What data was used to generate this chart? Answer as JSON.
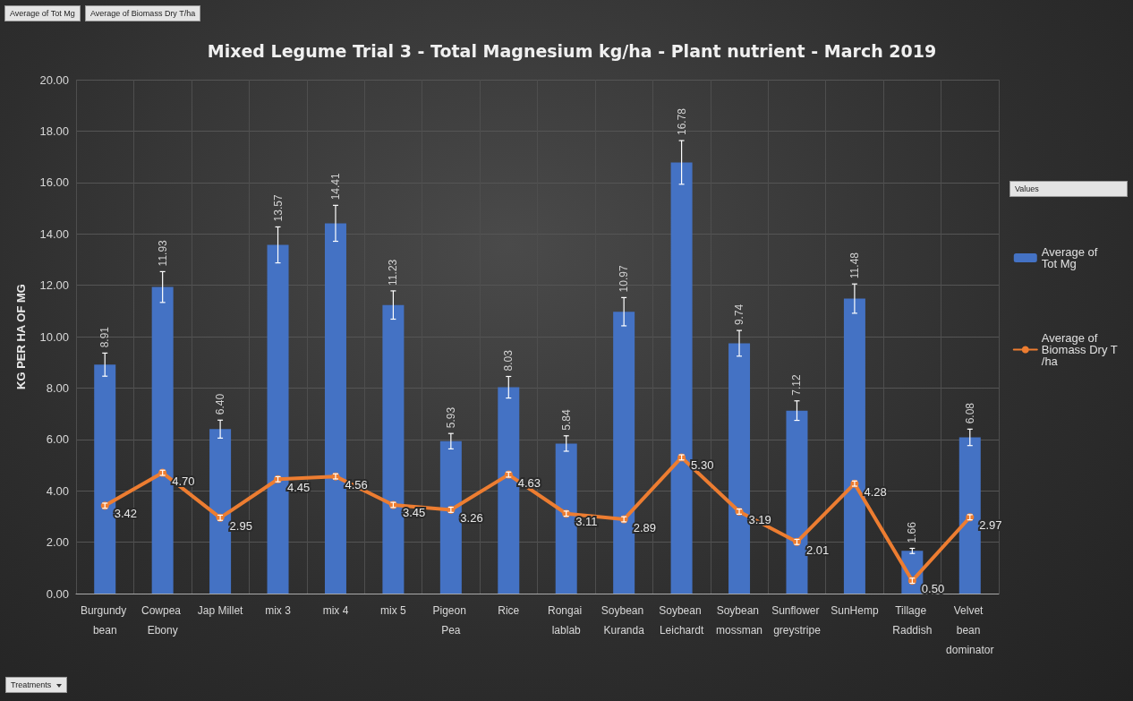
{
  "chart_data": {
    "type": "bar",
    "title": "Mixed Legume Trial 3 - Total Magnesium kg/ha - Plant nutrient - March 2019",
    "ylabel": "KG PER HA OF MG",
    "categories": [
      "Burgundy bean",
      "Cowpea Ebony",
      "Jap Millet",
      "mix 3",
      "mix 4",
      "mix 5",
      "Pigeon Pea",
      "Rice",
      "Rongai lablab",
      "Soybean Kuranda",
      "Soybean Leichardt",
      "Soybean mossman",
      "Sunflower greystripe",
      "SunHemp",
      "Tillage Raddish",
      "Velvet bean dominator"
    ],
    "series": [
      {
        "name": "Average of Tot Mg",
        "color": "#4472c4",
        "values": [
          8.91,
          11.93,
          6.4,
          13.57,
          14.41,
          11.23,
          5.93,
          8.03,
          5.84,
          10.97,
          16.78,
          9.74,
          7.12,
          11.48,
          1.66,
          6.08
        ],
        "value_labels": [
          "8.91",
          "11.93",
          "6.40",
          "13.57",
          "14.41",
          "11.23",
          "5.93",
          "8.03",
          "5.84",
          "10.97",
          "16.78",
          "9.74",
          "7.12",
          "11.48",
          "1.66",
          "6.08"
        ],
        "errors": [
          0.45,
          0.6,
          0.35,
          0.7,
          0.7,
          0.55,
          0.3,
          0.42,
          0.3,
          0.55,
          0.85,
          0.5,
          0.38,
          0.57,
          0.1,
          0.32
        ]
      },
      {
        "name": "Average of Biomass Dry T/ha",
        "type": "line",
        "color": "#ed7d31",
        "values": [
          3.42,
          4.7,
          2.95,
          4.45,
          4.56,
          3.45,
          3.26,
          4.63,
          3.11,
          2.89,
          5.3,
          3.19,
          2.01,
          4.28,
          0.5,
          2.97
        ],
        "value_labels": [
          "3.42",
          "4.70",
          "2.95",
          "4.45",
          "4.56",
          "3.45",
          "3.26",
          "4.63",
          "3.11",
          "2.89",
          "5.30",
          "3.19",
          "2.01",
          "4.28",
          "0.50",
          "2.97"
        ],
        "errors": [
          0.1,
          0.1,
          0.1,
          0.1,
          0.1,
          0.1,
          0.1,
          0.1,
          0.1,
          0.1,
          0.1,
          0.1,
          0.1,
          0.1,
          0.1,
          0.1
        ]
      }
    ],
    "ylim": [
      0,
      20
    ],
    "yticks": [
      {
        "value": 0,
        "label": "0.00"
      },
      {
        "value": 2,
        "label": "2.00"
      },
      {
        "value": 4,
        "label": "4.00"
      },
      {
        "value": 6,
        "label": "6.00"
      },
      {
        "value": 8,
        "label": "8.00"
      },
      {
        "value": 10,
        "label": "10.00"
      },
      {
        "value": 12,
        "label": "12.00"
      },
      {
        "value": 14,
        "label": "14.00"
      },
      {
        "value": 16,
        "label": "16.00"
      },
      {
        "value": 18,
        "label": "18.00"
      },
      {
        "value": 20,
        "label": "20.00"
      }
    ],
    "grid": true,
    "legend": "right",
    "marker": "circle",
    "line_style": "solid",
    "annotations": [
      "Average of Tot Mg",
      "Average of Biomass Dry T/ha",
      "Values",
      "Treatments"
    ]
  }
}
